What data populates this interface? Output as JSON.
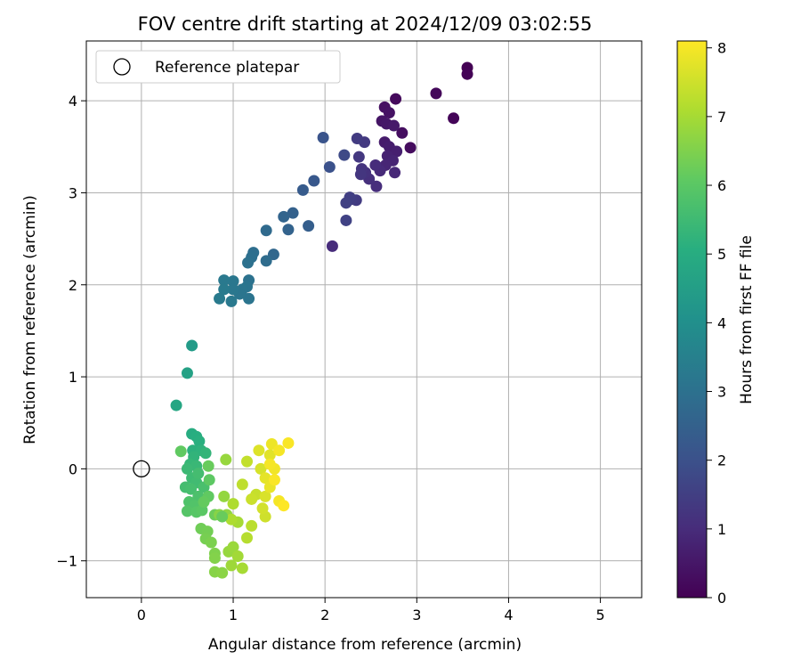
{
  "chart_data": {
    "type": "scatter",
    "title": "FOV centre drift starting at 2024/12/09 03:02:55",
    "xlabel": "Angular distance from reference (arcmin)",
    "ylabel": "Rotation from reference (arcmin)",
    "xlim": [
      -0.6,
      5.45
    ],
    "ylim": [
      -1.4,
      4.65
    ],
    "xticks": [
      0,
      1,
      2,
      3,
      4,
      5
    ],
    "yticks": [
      -1,
      0,
      1,
      2,
      3,
      4
    ],
    "grid": true,
    "legend": {
      "placement": "top-left",
      "entries": [
        {
          "label": "Reference platepar",
          "marker": "open-circle"
        }
      ]
    },
    "reference_point": {
      "x": 0,
      "y": 0
    },
    "colorbar": {
      "label": "Hours from first FF file",
      "colormap": "viridis",
      "range": [
        0,
        8.1
      ],
      "ticks": [
        0,
        1,
        2,
        3,
        4,
        5,
        6,
        7,
        8
      ]
    },
    "points": [
      [
        3.55,
        4.36,
        0.0
      ],
      [
        3.55,
        4.29,
        0.05
      ],
      [
        3.4,
        3.81,
        0.1
      ],
      [
        3.21,
        4.08,
        0.15
      ],
      [
        2.77,
        4.02,
        0.2
      ],
      [
        2.93,
        3.49,
        0.25
      ],
      [
        2.84,
        3.65,
        0.3
      ],
      [
        2.65,
        3.93,
        0.35
      ],
      [
        2.7,
        3.87,
        0.4
      ],
      [
        2.62,
        3.78,
        0.45
      ],
      [
        2.67,
        3.75,
        0.5
      ],
      [
        2.75,
        3.73,
        0.55
      ],
      [
        2.65,
        3.55,
        0.6
      ],
      [
        2.7,
        3.5,
        0.65
      ],
      [
        2.78,
        3.45,
        0.7
      ],
      [
        2.68,
        3.4,
        0.75
      ],
      [
        2.74,
        3.35,
        0.8
      ],
      [
        2.66,
        3.3,
        0.85
      ],
      [
        2.76,
        3.22,
        0.9
      ],
      [
        2.6,
        3.24,
        0.95
      ],
      [
        2.55,
        3.3,
        1.0
      ],
      [
        2.56,
        3.07,
        1.05
      ],
      [
        2.48,
        3.15,
        1.1
      ],
      [
        2.44,
        3.22,
        1.15
      ],
      [
        2.4,
        3.26,
        1.2
      ],
      [
        2.39,
        3.2,
        1.25
      ],
      [
        2.37,
        3.39,
        1.3
      ],
      [
        2.43,
        3.55,
        1.35
      ],
      [
        2.35,
        3.59,
        1.4
      ],
      [
        2.34,
        2.92,
        1.4
      ],
      [
        2.29,
        2.93,
        1.45
      ],
      [
        2.27,
        2.95,
        1.5
      ],
      [
        2.23,
        2.89,
        1.55
      ],
      [
        2.08,
        2.42,
        1.0
      ],
      [
        2.23,
        2.7,
        1.6
      ],
      [
        2.21,
        3.41,
        1.8
      ],
      [
        2.05,
        3.28,
        2.0
      ],
      [
        1.98,
        3.6,
        2.1
      ],
      [
        1.88,
        3.13,
        2.2
      ],
      [
        1.76,
        3.03,
        2.3
      ],
      [
        1.82,
        2.64,
        2.4
      ],
      [
        1.65,
        2.78,
        2.5
      ],
      [
        1.6,
        2.6,
        2.55
      ],
      [
        1.55,
        2.74,
        2.6
      ],
      [
        1.44,
        2.33,
        2.7
      ],
      [
        1.36,
        2.59,
        2.8
      ],
      [
        1.36,
        2.26,
        2.85
      ],
      [
        1.22,
        2.35,
        2.9
      ],
      [
        1.2,
        2.3,
        2.95
      ],
      [
        1.16,
        2.24,
        3.0
      ],
      [
        1.17,
        2.05,
        3.05
      ],
      [
        1.15,
        1.98,
        3.1
      ],
      [
        1.17,
        1.85,
        3.1
      ],
      [
        1.1,
        1.95,
        3.15
      ],
      [
        1.07,
        1.9,
        3.15
      ],
      [
        1.0,
        2.04,
        3.2
      ],
      [
        1.0,
        1.95,
        3.2
      ],
      [
        0.98,
        1.82,
        3.25
      ],
      [
        0.9,
        2.05,
        3.25
      ],
      [
        0.9,
        1.95,
        3.3
      ],
      [
        0.85,
        1.85,
        3.3
      ],
      [
        0.55,
        1.34,
        4.4
      ],
      [
        0.5,
        1.04,
        4.6
      ],
      [
        0.38,
        0.69,
        4.8
      ],
      [
        0.55,
        0.38,
        5.0
      ],
      [
        0.6,
        0.35,
        5.05
      ],
      [
        0.63,
        0.3,
        5.1
      ],
      [
        0.56,
        0.2,
        5.15
      ],
      [
        0.65,
        0.2,
        5.2
      ],
      [
        0.57,
        0.13,
        5.25
      ],
      [
        0.7,
        0.17,
        5.3
      ],
      [
        0.53,
        0.05,
        5.35
      ],
      [
        0.6,
        0.03,
        5.4
      ],
      [
        0.5,
        0.0,
        5.45
      ],
      [
        0.55,
        -0.1,
        5.5
      ],
      [
        0.6,
        -0.15,
        5.55
      ],
      [
        0.48,
        -0.2,
        5.6
      ],
      [
        0.54,
        -0.22,
        5.65
      ],
      [
        0.68,
        -0.2,
        5.7
      ],
      [
        0.62,
        -0.3,
        5.75
      ],
      [
        0.52,
        -0.36,
        5.8
      ],
      [
        0.58,
        -0.4,
        5.85
      ],
      [
        0.5,
        -0.46,
        5.9
      ],
      [
        0.6,
        -0.47,
        5.95
      ],
      [
        0.66,
        -0.45,
        6.0
      ],
      [
        0.74,
        -0.12,
        6.05
      ],
      [
        0.73,
        -0.3,
        6.1
      ],
      [
        0.68,
        -0.36,
        6.15
      ],
      [
        0.43,
        0.19,
        6.1
      ],
      [
        0.73,
        0.03,
        6.2
      ],
      [
        0.8,
        -0.5,
        6.25
      ],
      [
        0.65,
        -0.65,
        6.3
      ],
      [
        0.72,
        -0.68,
        6.35
      ],
      [
        0.7,
        -0.76,
        6.4
      ],
      [
        0.76,
        -0.8,
        6.45
      ],
      [
        0.8,
        -0.92,
        6.5
      ],
      [
        0.8,
        -0.97,
        6.55
      ],
      [
        0.85,
        -0.5,
        6.6
      ],
      [
        0.8,
        -1.12,
        6.6
      ],
      [
        0.88,
        -1.13,
        6.65
      ],
      [
        0.93,
        -0.5,
        6.7
      ],
      [
        0.9,
        -0.3,
        6.75
      ],
      [
        0.95,
        -0.9,
        6.8
      ],
      [
        1.0,
        -0.85,
        6.85
      ],
      [
        0.98,
        -1.05,
        6.9
      ],
      [
        1.05,
        -0.95,
        6.95
      ],
      [
        1.1,
        -1.08,
        7.0
      ],
      [
        1.05,
        -0.58,
        7.0
      ],
      [
        0.98,
        -0.55,
        7.1
      ],
      [
        1.0,
        -0.38,
        7.1
      ],
      [
        1.15,
        -0.75,
        7.2
      ],
      [
        1.2,
        -0.62,
        7.25
      ],
      [
        1.1,
        -0.17,
        7.3
      ],
      [
        1.15,
        0.08,
        7.35
      ],
      [
        1.25,
        -0.28,
        7.4
      ],
      [
        1.2,
        -0.33,
        7.45
      ],
      [
        1.35,
        -0.52,
        7.5
      ],
      [
        1.32,
        -0.43,
        7.55
      ],
      [
        1.3,
        0.0,
        7.6
      ],
      [
        1.35,
        -0.3,
        7.65
      ],
      [
        1.28,
        0.2,
        7.7
      ],
      [
        1.4,
        0.15,
        7.75
      ],
      [
        1.35,
        -0.1,
        7.8
      ],
      [
        1.4,
        -0.2,
        7.85
      ],
      [
        1.42,
        0.27,
        7.9
      ],
      [
        1.45,
        0.0,
        7.95
      ],
      [
        1.5,
        -0.35,
        8.0
      ],
      [
        1.5,
        0.2,
        8.0
      ],
      [
        1.6,
        0.28,
        8.05
      ],
      [
        1.55,
        -0.4,
        8.1
      ],
      [
        1.45,
        -0.12,
        8.05
      ],
      [
        1.4,
        0.05,
        8.0
      ],
      [
        0.92,
        0.1,
        6.8
      ],
      [
        0.88,
        -0.52,
        6.2
      ],
      [
        0.62,
        -0.05,
        5.6
      ]
    ]
  }
}
